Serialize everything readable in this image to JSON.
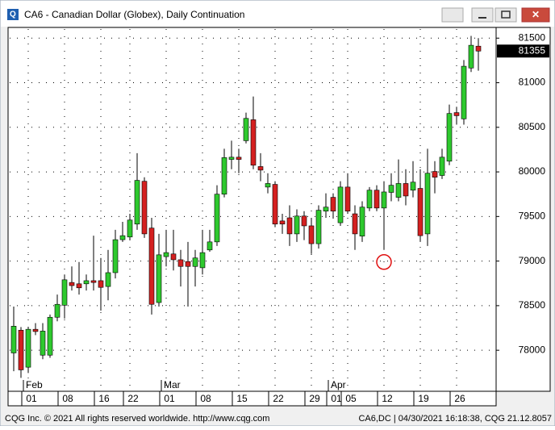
{
  "chart_data": {
    "type": "candlestick",
    "title": "CA6 - Canadian Dollar (Globex), Daily Continuation",
    "footer_left": "CQG Inc. © 2021 All rights reserved worldwide. http://www.cqg.com",
    "footer_right": "CA6,DC | 04/30/2021 16:18:38, CQG 21.12.8057",
    "months": [
      "Feb",
      "Mar",
      "Apr"
    ],
    "categories": [
      null,
      null,
      "01",
      null,
      null,
      null,
      null,
      "08",
      null,
      null,
      null,
      null,
      "16",
      null,
      null,
      null,
      "22",
      null,
      null,
      null,
      null,
      "01",
      null,
      null,
      null,
      null,
      "08",
      null,
      null,
      null,
      null,
      "15",
      null,
      null,
      null,
      null,
      "22",
      null,
      null,
      null,
      null,
      "29",
      null,
      null,
      "01",
      null,
      "05",
      null,
      null,
      null,
      null,
      "12",
      null,
      null,
      null,
      null,
      "19",
      null,
      null,
      null,
      null,
      "26",
      null,
      null,
      null
    ],
    "open": [
      77970,
      78225,
      77810,
      78235,
      77945,
      77945,
      78370,
      78505,
      78760,
      78745,
      78745,
      78780,
      78780,
      78715,
      78870,
      79240,
      79270,
      79415,
      79895,
      79370,
      78535,
      79050,
      79080,
      79015,
      78995,
      78940,
      78925,
      79125,
      79215,
      79750,
      80140,
      80165,
      80350,
      80585,
      80060,
      79830,
      79860,
      79450,
      79485,
      79305,
      79505,
      79395,
      79195,
      79560,
      79715,
      79430,
      79830,
      79530,
      79280,
      79595,
      79795,
      79595,
      79770,
      79715,
      79870,
      79795,
      79815,
      79305,
      80005,
      79960,
      80120,
      80665,
      80595,
      81165,
      81410
    ],
    "high": [
      78490,
      78260,
      78260,
      78305,
      78305,
      78400,
      78625,
      78850,
      78940,
      78990,
      78850,
      79285,
      79035,
      79125,
      79350,
      79440,
      79530,
      80210,
      79940,
      79485,
      79305,
      79350,
      79350,
      79125,
      79215,
      79125,
      79350,
      79350,
      79850,
      80260,
      80350,
      80260,
      80665,
      80845,
      80210,
      79985,
      79895,
      79530,
      79625,
      79580,
      79560,
      79485,
      79625,
      79760,
      79760,
      79895,
      79985,
      79625,
      79670,
      79830,
      79850,
      79895,
      79985,
      80140,
      80030,
      80120,
      80030,
      80260,
      80120,
      80260,
      80755,
      80730,
      81255,
      81525,
      81500
    ],
    "low": [
      77765,
      77690,
      77745,
      78170,
      77900,
      77915,
      78325,
      78355,
      78670,
      78625,
      78670,
      78670,
      78445,
      78560,
      78805,
      79215,
      79235,
      79350,
      79260,
      78400,
      78490,
      78940,
      78895,
      78715,
      78490,
      78715,
      78850,
      79105,
      79170,
      79715,
      80030,
      79985,
      80320,
      80030,
      79895,
      79760,
      79380,
      79305,
      79170,
      79215,
      79235,
      79080,
      79140,
      79485,
      79485,
      79395,
      79530,
      79125,
      79215,
      79560,
      79560,
      79125,
      79670,
      79670,
      79625,
      79715,
      79215,
      79170,
      79760,
      79920,
      80075,
      80530,
      80530,
      81120,
      81135
    ],
    "close": [
      78270,
      77780,
      78235,
      78210,
      78215,
      78370,
      78515,
      78790,
      78725,
      78700,
      78780,
      78760,
      78705,
      78870,
      79240,
      79285,
      79460,
      79905,
      79305,
      78515,
      79070,
      79095,
      79015,
      78940,
      78940,
      79035,
      79095,
      79215,
      79750,
      80160,
      80165,
      80140,
      80600,
      80075,
      80020,
      79870,
      79415,
      79415,
      79305,
      79505,
      79395,
      79195,
      79570,
      79605,
      79560,
      79830,
      79560,
      79305,
      79605,
      79795,
      79595,
      79775,
      79850,
      79870,
      79730,
      79885,
      79285,
      79985,
      79940,
      80165,
      80655,
      80630,
      81185,
      81420,
      81355
    ],
    "up_color": "#2ec92e",
    "down_color": "#d42020",
    "last_price": 81355,
    "ylim": [
      77540,
      81620
    ],
    "yticks": [
      78000,
      78500,
      79000,
      79500,
      80000,
      80500,
      81000,
      81500
    ],
    "grid": true
  }
}
